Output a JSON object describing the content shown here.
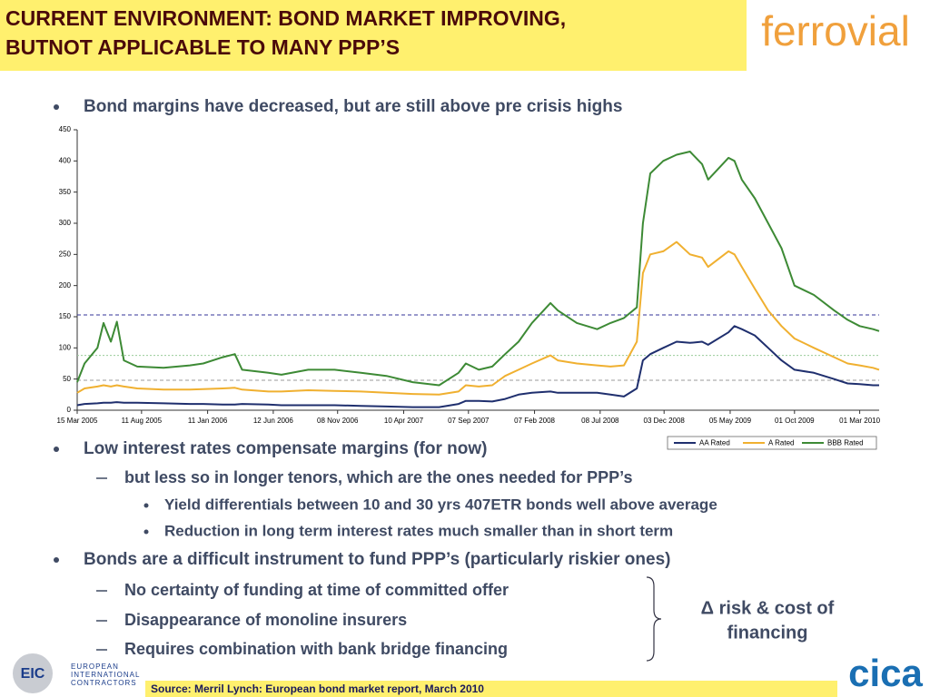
{
  "header": {
    "title": [
      "CURRENT ENVIRONMENT: BOND MARKET IMPROVING,",
      "BUTNOT APPLICABLE TO MANY PPP’S"
    ],
    "logo": "ferrovial"
  },
  "bullets": [
    {
      "level": 1,
      "text": "Bond margins have decreased, but are still above pre crisis highs"
    },
    {
      "level": 1,
      "text": "Low interest rates compensate margins (for now)"
    },
    {
      "level": 2,
      "text": "but less so in longer tenors, which are the ones needed for PPP’s"
    },
    {
      "level": 3,
      "text": "Yield differentials between 10 and 30 yrs 407ETR bonds well above average"
    },
    {
      "level": 3,
      "text": "Reduction in long term interest rates much smaller than in short term"
    },
    {
      "level": 1,
      "text": "Bonds are a difficult instrument to fund PPP’s (particularly riskier ones)"
    },
    {
      "level": 2,
      "text": "No certainty of funding at time of committed offer"
    },
    {
      "level": 2,
      "text": "Disappearance of monoline insurers"
    },
    {
      "level": 2,
      "text": "Requires combination with bank bridge financing"
    }
  ],
  "annotation": [
    "Δ risk & cost of",
    "financing"
  ],
  "source": "Source: Merril Lynch: European bond market report, March 2010",
  "footer_logos": {
    "eic": "EIC",
    "eic_name": [
      "EUROPEAN",
      "INTERNATIONAL",
      "CONTRACTORS"
    ],
    "cica": "cica"
  },
  "chart_data": {
    "type": "line",
    "x": [
      "15 Mar 2005",
      "01 Apr 2005",
      "01 May 2005",
      "15 May 2005",
      "01 Jun 2005",
      "15 Jun 2005",
      "01 Jul 2005",
      "01 Aug 2005",
      "01 Oct 2005",
      "01 Dec 2005",
      "01 Jan 2006",
      "15 Feb 2006",
      "15 Mar 2006",
      "01 Apr 2006",
      "01 Jun 2006",
      "01 Jul 2006",
      "01 Sep 2006",
      "01 Nov 2006",
      "01 Jan 2007",
      "01 Mar 2007",
      "01 May 2007",
      "01 Jul 2007",
      "15 Aug 2007",
      "01 Sep 2007",
      "01 Oct 2007",
      "01 Nov 2007",
      "01 Dec 2007",
      "01 Jan 2008",
      "01 Feb 2008",
      "15 Mar 2008",
      "01 Apr 2008",
      "15 May 2008",
      "01 Jul 2008",
      "01 Aug 2008",
      "01 Sep 2008",
      "01 Oct 2008",
      "15 Oct 2008",
      "01 Nov 2008",
      "01 Dec 2008",
      "01 Jan 2009",
      "01 Feb 2009",
      "01 Mar 2009",
      "15 Mar 2009",
      "01 May 2009",
      "15 May 2009",
      "01 Jun 2009",
      "01 Jul 2009",
      "01 Aug 2009",
      "01 Sep 2009",
      "01 Oct 2009",
      "15 Nov 2009",
      "01 Jan 2010",
      "01 Feb 2010",
      "01 Mar 2010",
      "01 Apr 2010",
      "15 Apr 2010"
    ],
    "series": [
      {
        "name": "AA Rated",
        "color": "#1f2f6e",
        "values": [
          8,
          10,
          11,
          12,
          12,
          13,
          12,
          12,
          11,
          10,
          10,
          9,
          9,
          10,
          9,
          8,
          8,
          8,
          7,
          6,
          5,
          5,
          10,
          15,
          15,
          14,
          18,
          25,
          28,
          30,
          28,
          28,
          28,
          25,
          22,
          35,
          80,
          90,
          100,
          110,
          108,
          110,
          105,
          125,
          135,
          130,
          120,
          100,
          80,
          65,
          60,
          50,
          43,
          42,
          40,
          40
        ]
      },
      {
        "name": "A Rated",
        "color": "#f0b030",
        "values": [
          28,
          35,
          38,
          40,
          38,
          40,
          38,
          35,
          33,
          33,
          34,
          35,
          36,
          33,
          30,
          30,
          32,
          31,
          30,
          28,
          26,
          25,
          30,
          40,
          38,
          40,
          55,
          65,
          75,
          88,
          80,
          75,
          72,
          70,
          72,
          110,
          220,
          250,
          255,
          270,
          250,
          245,
          230,
          255,
          250,
          230,
          195,
          160,
          135,
          115,
          100,
          85,
          75,
          72,
          68,
          65
        ]
      },
      {
        "name": "BBB Rated",
        "color": "#3d8a35",
        "values": [
          45,
          75,
          100,
          140,
          110,
          142,
          80,
          70,
          68,
          72,
          75,
          85,
          90,
          65,
          60,
          57,
          65,
          65,
          60,
          55,
          45,
          40,
          60,
          75,
          65,
          70,
          90,
          110,
          140,
          172,
          160,
          140,
          130,
          140,
          148,
          165,
          300,
          380,
          400,
          410,
          415,
          395,
          370,
          405,
          400,
          370,
          340,
          300,
          260,
          200,
          185,
          160,
          145,
          135,
          130,
          127
        ]
      }
    ],
    "xlim": [
      "15 Mar 2005",
      "15 Apr 2010"
    ],
    "xticks": [
      "15 Mar 2005",
      "11 Aug 2005",
      "11 Jan 2006",
      "12 Jun 2006",
      "08 Nov 2006",
      "10 Apr 2007",
      "07 Sep 2007",
      "07 Feb 2008",
      "08 Jul 2008",
      "03 Dec 2008",
      "05 May 2009",
      "01 Oct 2009",
      "01 Mar 2010"
    ],
    "ylim": [
      0,
      450
    ],
    "yticks": [
      0,
      50,
      100,
      150,
      200,
      250,
      300,
      350,
      400,
      450
    ],
    "reference_lines": [
      {
        "value": 153,
        "color": "#333399"
      },
      {
        "value": 88,
        "color": "#99cc99"
      },
      {
        "value": 48,
        "color": "#999999"
      }
    ],
    "legend": "bottom-right"
  }
}
